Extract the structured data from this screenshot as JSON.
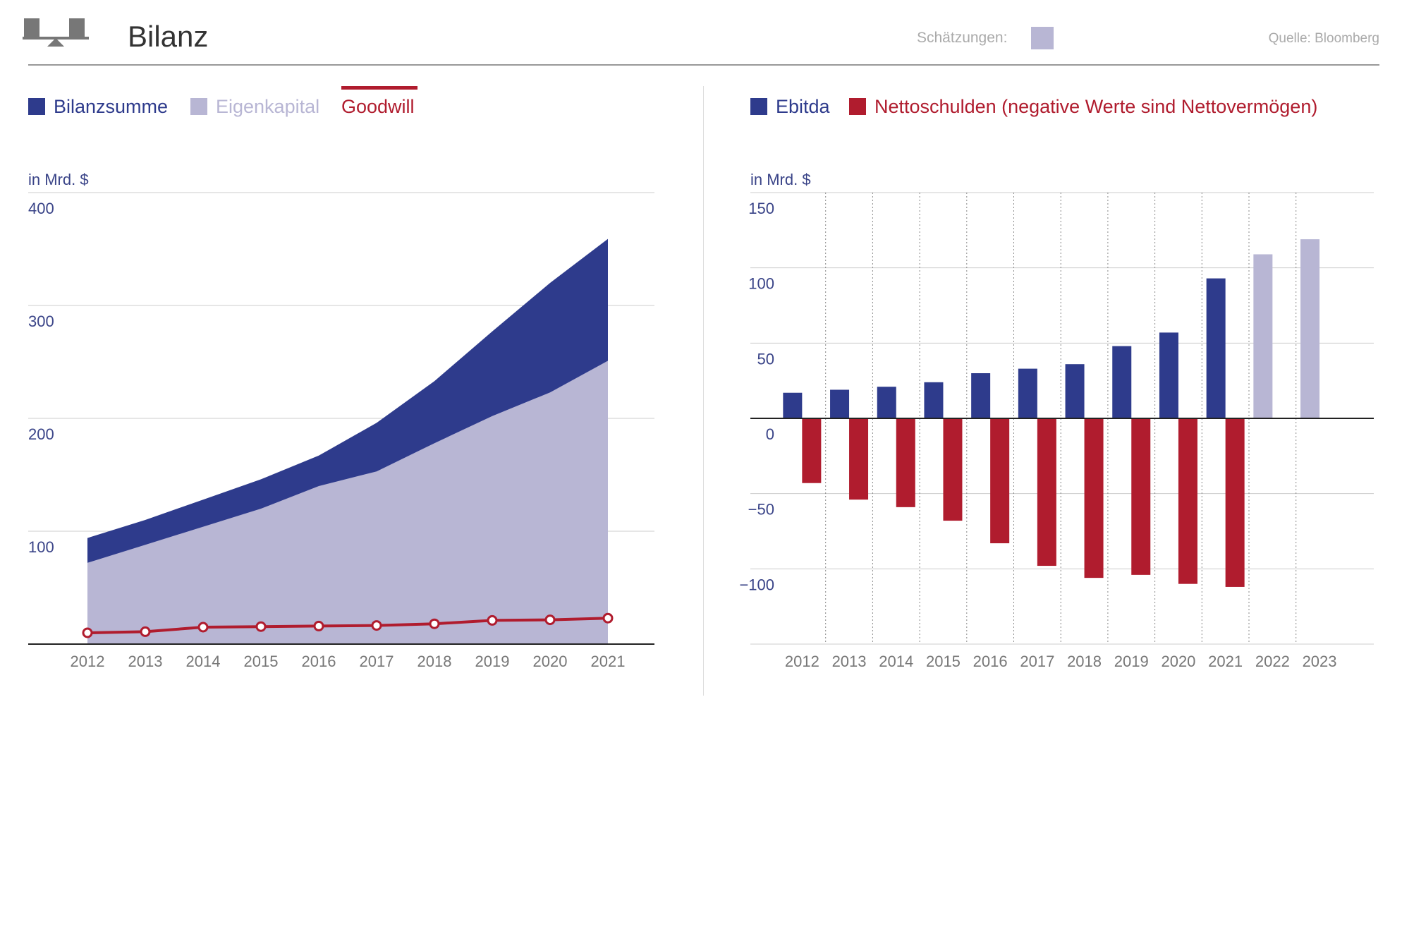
{
  "header": {
    "title": "Bilanz",
    "estimates_label": "Schätzungen:",
    "source": "Quelle: Bloomberg"
  },
  "colors": {
    "navy": "#2e3b8c",
    "lavender": "#b8b6d4",
    "red": "#b01c2e",
    "grid": "#cccccc",
    "axis_text": "#3a4488",
    "tick_text": "#777777"
  },
  "legend_left": {
    "bilanzsumme": "Bilanzsumme",
    "eigenkapital": "Eigenkapital",
    "goodwill": "Goodwill"
  },
  "legend_right": {
    "ebitda": "Ebitda",
    "nettoschulden": "Nettoschulden (negative Werte sind Nettovermögen)"
  },
  "chart_data": [
    {
      "type": "area",
      "title": "Bilanz",
      "ylabel": "in Mrd. $",
      "ylim": [
        0,
        400
      ],
      "yticks": [
        100,
        200,
        300,
        400
      ],
      "categories": [
        "2012",
        "2013",
        "2014",
        "2015",
        "2016",
        "2017",
        "2018",
        "2019",
        "2020",
        "2021"
      ],
      "series": [
        {
          "name": "Bilanzsumme",
          "kind": "area",
          "values": [
            94,
            110,
            128,
            146,
            167,
            196,
            233,
            277,
            320,
            359
          ]
        },
        {
          "name": "Eigenkapital",
          "kind": "area",
          "values": [
            72,
            88,
            104,
            120,
            140,
            153,
            178,
            202,
            223,
            251
          ]
        },
        {
          "name": "Goodwill",
          "kind": "line",
          "values": [
            10,
            11,
            15,
            15.5,
            16,
            16.5,
            18,
            21,
            21.5,
            23
          ]
        }
      ]
    },
    {
      "type": "bar",
      "ylabel": "in Mrd. $",
      "ylim": [
        -150,
        150
      ],
      "yticks": [
        150,
        100,
        50,
        0,
        -50,
        -100
      ],
      "ytick_labels": [
        "150",
        "100",
        "50",
        "0",
        "−50",
        "−100"
      ],
      "categories": [
        "2012",
        "2013",
        "2014",
        "2015",
        "2016",
        "2017",
        "2018",
        "2019",
        "2020",
        "2021",
        "2022",
        "2023"
      ],
      "estimate_categories": [
        "2022",
        "2023"
      ],
      "series": [
        {
          "name": "Ebitda",
          "values": [
            17,
            19,
            21,
            24,
            30,
            33,
            36,
            48,
            57,
            93,
            109,
            119
          ]
        },
        {
          "name": "Nettoschulden",
          "values": [
            -43,
            -54,
            -59,
            -68,
            -83,
            -98,
            -106,
            -104,
            -110,
            -112,
            null,
            null
          ]
        }
      ]
    }
  ]
}
